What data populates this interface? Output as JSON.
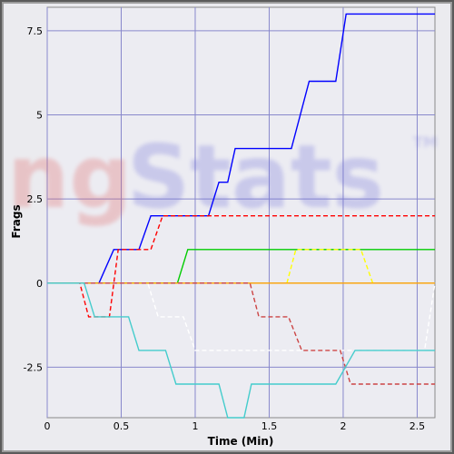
{
  "watermark": {
    "text": "ngStats",
    "tm": "TM"
  },
  "chart_data": {
    "type": "line",
    "xlabel": "Time (Min)",
    "ylabel": "Frags",
    "xlim": [
      0,
      2.62
    ],
    "ylim": [
      -4.0,
      8.2
    ],
    "x_ticks": [
      0,
      0.5,
      1,
      1.5,
      2,
      2.5
    ],
    "x_tick_labels": [
      "0",
      "0.5",
      "1",
      "1.5",
      "2",
      "2.5"
    ],
    "y_ticks": [
      -2.5,
      0,
      2.5,
      5,
      7.5
    ],
    "y_tick_labels": [
      "-2.5",
      "0",
      "2.5",
      "5",
      "7.5"
    ],
    "grid": true,
    "colors": {
      "plot_bg": "#ececf2",
      "grid": "#8888cc",
      "frame": "#8a8a8a"
    },
    "series": [
      {
        "color": "#0000ff",
        "dash": "solid",
        "points": [
          [
            0.0,
            0
          ],
          [
            0.35,
            0
          ],
          [
            0.45,
            1
          ],
          [
            0.62,
            1
          ],
          [
            0.7,
            2
          ],
          [
            0.95,
            2
          ],
          [
            1.09,
            2
          ],
          [
            1.16,
            3
          ],
          [
            1.22,
            3
          ],
          [
            1.27,
            4
          ],
          [
            1.65,
            4
          ],
          [
            1.77,
            6
          ],
          [
            1.95,
            6
          ],
          [
            2.02,
            8
          ],
          [
            2.62,
            8
          ]
        ]
      },
      {
        "color": "#ff0000",
        "dash": "dashed",
        "points": [
          [
            0.0,
            0
          ],
          [
            0.22,
            0
          ],
          [
            0.28,
            -1
          ],
          [
            0.42,
            -1
          ],
          [
            0.48,
            1
          ],
          [
            0.7,
            1
          ],
          [
            0.78,
            2
          ],
          [
            2.62,
            2
          ]
        ]
      },
      {
        "color": "#00cc00",
        "dash": "solid",
        "points": [
          [
            0.0,
            0
          ],
          [
            0.88,
            0
          ],
          [
            0.95,
            1
          ],
          [
            2.62,
            1
          ]
        ]
      },
      {
        "color": "#ffff00",
        "dash": "dashed",
        "points": [
          [
            1.62,
            0
          ],
          [
            1.68,
            1
          ],
          [
            2.12,
            1
          ],
          [
            2.2,
            0
          ]
        ]
      },
      {
        "color": "#ffa500",
        "dash": "solid",
        "points": [
          [
            0.0,
            0
          ],
          [
            2.62,
            0
          ]
        ]
      },
      {
        "color": "#ffffff",
        "dash": "dashed",
        "points": [
          [
            0.0,
            0
          ],
          [
            0.68,
            0
          ],
          [
            0.75,
            -1
          ],
          [
            0.92,
            -1
          ],
          [
            1.0,
            -2
          ],
          [
            2.55,
            -2
          ],
          [
            2.62,
            0
          ]
        ]
      },
      {
        "color": "#cc4444",
        "dash": "dashed",
        "points": [
          [
            0.0,
            0
          ],
          [
            1.37,
            0
          ],
          [
            1.43,
            -1
          ],
          [
            1.63,
            -1
          ],
          [
            1.72,
            -2
          ],
          [
            1.98,
            -2
          ],
          [
            2.05,
            -3
          ],
          [
            2.62,
            -3
          ]
        ]
      },
      {
        "color": "#44cccc",
        "dash": "solid",
        "points": [
          [
            0.0,
            0
          ],
          [
            0.25,
            0
          ],
          [
            0.32,
            -1
          ],
          [
            0.55,
            -1
          ],
          [
            0.62,
            -2
          ],
          [
            0.8,
            -2
          ],
          [
            0.87,
            -3
          ],
          [
            1.16,
            -3
          ],
          [
            1.22,
            -4
          ],
          [
            1.33,
            -4
          ],
          [
            1.38,
            -3
          ],
          [
            1.95,
            -3
          ],
          [
            2.08,
            -2
          ],
          [
            2.62,
            -2
          ]
        ]
      }
    ]
  }
}
